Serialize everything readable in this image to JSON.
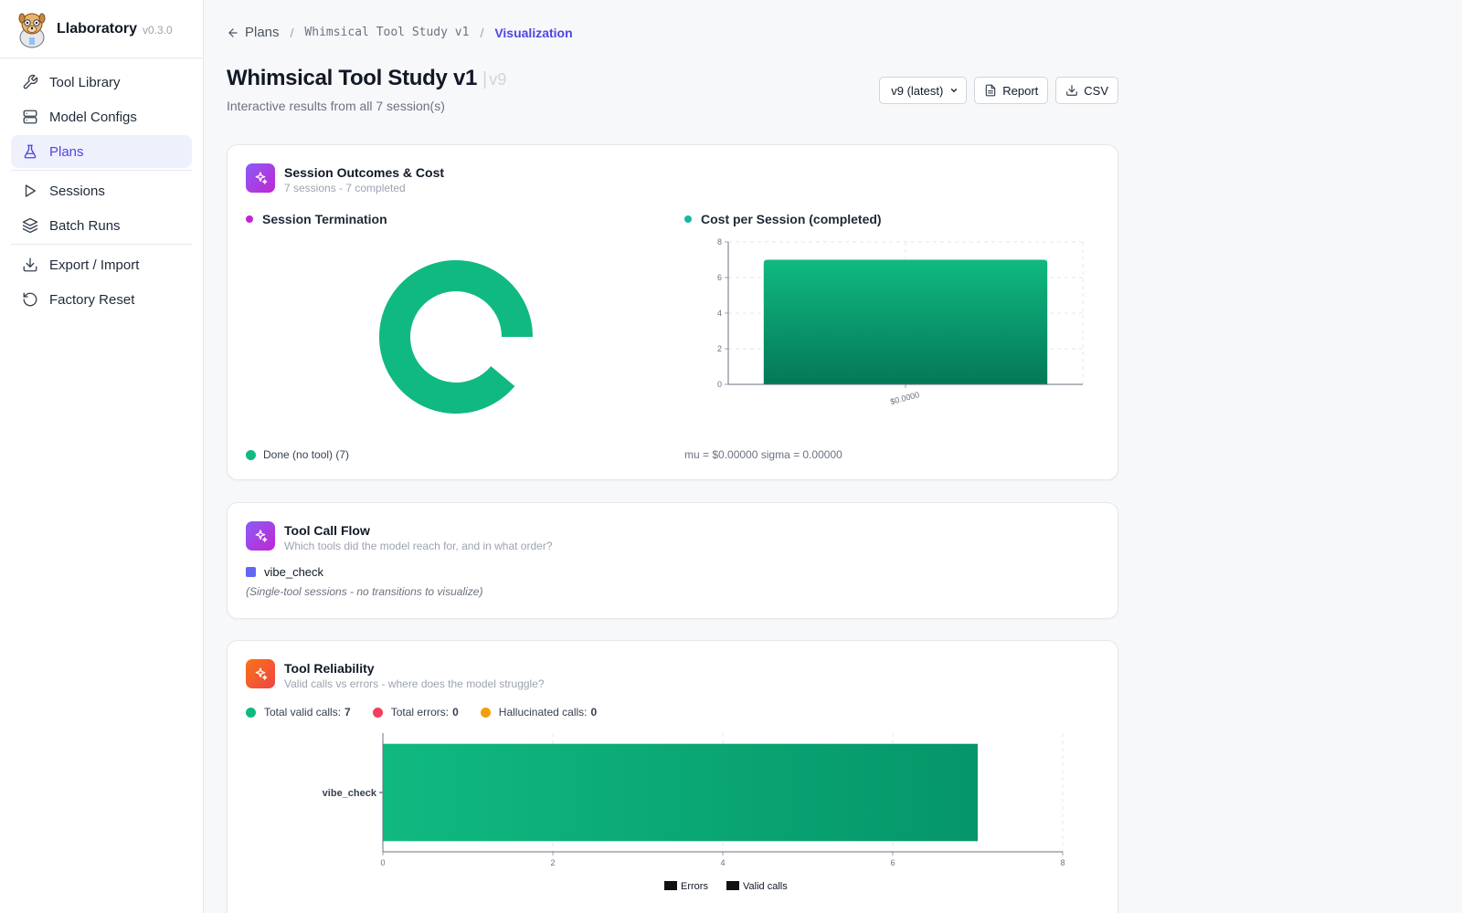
{
  "app": {
    "name": "Llaboratory",
    "version": "v0.3.0"
  },
  "nav": {
    "items": [
      {
        "label": "Tool Library"
      },
      {
        "label": "Model Configs"
      },
      {
        "label": "Plans"
      },
      {
        "label": "Sessions"
      },
      {
        "label": "Batch Runs"
      },
      {
        "label": "Export / Import"
      },
      {
        "label": "Factory Reset"
      }
    ]
  },
  "breadcrumb": {
    "back": "Plans",
    "plan": "Whimsical Tool Study v1",
    "current": "Visualization"
  },
  "page": {
    "title": "Whimsical Tool Study v1",
    "version_tag": "v9",
    "subtitle": "Interactive results from all 7 session(s)"
  },
  "actions": {
    "version_select": "v9 (latest)",
    "report": "Report",
    "csv": "CSV"
  },
  "colors": {
    "accent": "#4f46e5",
    "green": "#10b981",
    "dark_green": "#047857",
    "red": "#f43f5e",
    "amber": "#f59e0b",
    "magenta": "#c026d3",
    "teal": "#14b8a6",
    "violet": "#6366f1"
  },
  "outcomes": {
    "title": "Session Outcomes & Cost",
    "subtitle": "7 sessions - 7 completed",
    "termination_label": "Session Termination",
    "cost_label": "Cost per Session (completed)",
    "legend": "Done (no tool) (7)",
    "stats": "mu = $0.00000 sigma = 0.00000"
  },
  "flow": {
    "title": "Tool Call Flow",
    "subtitle": "Which tools did the model reach for, and in what order?",
    "tool": "vibe_check",
    "note": "(Single-tool sessions - no transitions to visualize)"
  },
  "reliability": {
    "title": "Tool Reliability",
    "subtitle": "Valid calls vs errors - where does the model struggle?",
    "valid_label": "Total valid calls:",
    "valid_value": "7",
    "errors_label": "Total errors:",
    "errors_value": "0",
    "halluc_label": "Hallucinated calls:",
    "halluc_value": "0"
  },
  "chart_data": [
    {
      "type": "pie",
      "labels": [
        "Done (no tool)"
      ],
      "values": [
        7
      ]
    },
    {
      "type": "bar",
      "categories": [
        "$0.0000"
      ],
      "values": [
        7
      ],
      "ylim": [
        0,
        8
      ],
      "yticks": [
        "0",
        "2",
        "4",
        "6",
        "8"
      ],
      "grid": true
    },
    {
      "type": "bar",
      "orientation": "horizontal",
      "categories": [
        "vibe_check"
      ],
      "series": [
        {
          "name": "Errors",
          "values": [
            0
          ]
        },
        {
          "name": "Valid calls",
          "values": [
            7
          ]
        }
      ],
      "xlim": [
        0,
        8
      ],
      "xticks": [
        "0",
        "2",
        "4",
        "6",
        "8"
      ],
      "legend": "bottom",
      "grid": true
    }
  ]
}
